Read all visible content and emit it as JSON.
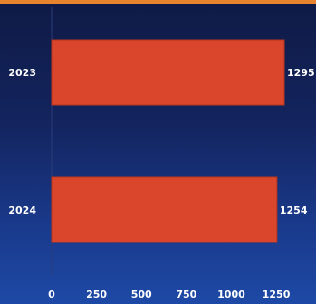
{
  "chart_data": {
    "type": "bar",
    "orientation": "horizontal",
    "categories": [
      "2023",
      "2024"
    ],
    "values": [
      1295,
      1254
    ],
    "data_labels": [
      "1295",
      "1254"
    ],
    "xlim": [
      0,
      1350
    ],
    "x_ticks": [
      0,
      250,
      500,
      750,
      1000,
      1250
    ],
    "x_tick_labels": [
      "0",
      "250",
      "500",
      "750",
      "1000",
      "1250"
    ],
    "title": "",
    "xlabel": "",
    "ylabel": "",
    "grid": false,
    "legend": "none"
  },
  "colors": {
    "bar": "#d9462b",
    "bar_edge": "#b7351f",
    "axis": "#2a3c7a",
    "accent_strip": "#e7842d",
    "text": "#ffffff"
  }
}
